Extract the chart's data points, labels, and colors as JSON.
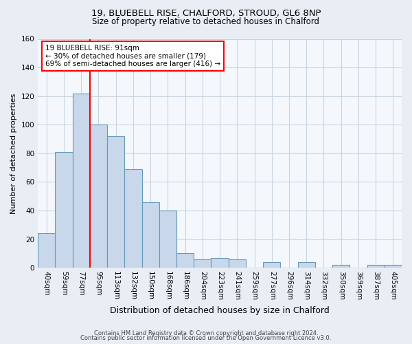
{
  "title1": "19, BLUEBELL RISE, CHALFORD, STROUD, GL6 8NP",
  "title2": "Size of property relative to detached houses in Chalford",
  "xlabel": "Distribution of detached houses by size in Chalford",
  "ylabel": "Number of detached properties",
  "bar_labels": [
    "40sqm",
    "59sqm",
    "77sqm",
    "95sqm",
    "113sqm",
    "132sqm",
    "150sqm",
    "168sqm",
    "186sqm",
    "204sqm",
    "223sqm",
    "241sqm",
    "259sqm",
    "277sqm",
    "296sqm",
    "314sqm",
    "332sqm",
    "350sqm",
    "369sqm",
    "387sqm",
    "405sqm"
  ],
  "bar_values": [
    24,
    81,
    122,
    100,
    92,
    69,
    46,
    40,
    10,
    6,
    7,
    6,
    0,
    4,
    0,
    4,
    0,
    2,
    0,
    2,
    2
  ],
  "bar_color": "#c8d8ea",
  "bar_edge_color": "#6699bb",
  "ref_line_x": 2.5,
  "reference_label": "19 BLUEBELL RISE: 91sqm",
  "annotation_line1": "← 30% of detached houses are smaller (179)",
  "annotation_line2": "69% of semi-detached houses are larger (416) →",
  "ylim": [
    0,
    160
  ],
  "yticks": [
    0,
    20,
    40,
    60,
    80,
    100,
    120,
    140,
    160
  ],
  "footer1": "Contains HM Land Registry data © Crown copyright and database right 2024.",
  "footer2": "Contains public sector information licensed under the Open Government Licence v3.0.",
  "bg_color": "#e8eef4",
  "plot_bg_color": "#f4f8fc",
  "grid_color": "#c8d4e0",
  "title1_fontsize": 9.5,
  "title2_fontsize": 8.5,
  "ylabel_fontsize": 8,
  "xlabel_fontsize": 9,
  "tick_fontsize": 7.5,
  "footer_fontsize": 6.0,
  "annot_fontsize": 7.5
}
